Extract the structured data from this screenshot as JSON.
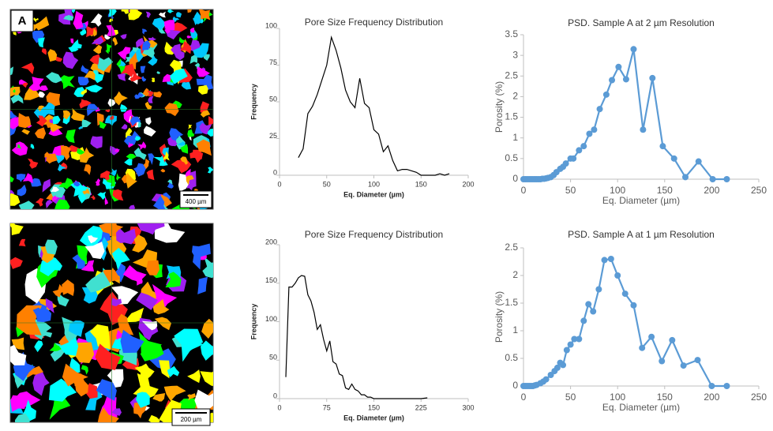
{
  "panel_label": "A",
  "images": [
    {
      "scale_bar": "400 µm"
    },
    {
      "scale_bar": "200 µm"
    }
  ],
  "chart_data": [
    {
      "type": "line",
      "title": "Pore Size Frequency Distribution",
      "x_label": "Eq. Diameter (µm)",
      "y_label": "Frequency",
      "color": "#000000",
      "markers": false,
      "x": [
        20,
        25,
        30,
        35,
        40,
        45,
        50,
        55,
        60,
        65,
        70,
        75,
        80,
        85,
        90,
        95,
        100,
        105,
        110,
        115,
        120,
        125,
        130,
        135,
        140,
        145,
        150,
        155,
        160,
        165,
        170,
        175,
        180
      ],
      "values": [
        12,
        18,
        42,
        47,
        55,
        65,
        75,
        94,
        85,
        73,
        58,
        50,
        46,
        66,
        49,
        46,
        31,
        28,
        16,
        20,
        10,
        3,
        4,
        4,
        3,
        2,
        0,
        0,
        0,
        0,
        1,
        0,
        1
      ],
      "xlim": [
        0,
        200
      ],
      "xticks": [
        0,
        50,
        100,
        150,
        200
      ],
      "ylim": [
        0,
        100
      ],
      "yticks": [
        0,
        25,
        50,
        75,
        100
      ]
    },
    {
      "type": "line",
      "title": "Pore Size Frequency Distribution",
      "x_label": "Eq. Diameter (µm)",
      "y_label": "Frequency",
      "color": "#000000",
      "markers": false,
      "x": [
        10,
        15,
        20,
        25,
        30,
        35,
        40,
        45,
        50,
        55,
        60,
        65,
        70,
        75,
        80,
        85,
        90,
        95,
        100,
        105,
        110,
        115,
        120,
        125,
        130,
        135,
        140,
        145,
        150,
        160,
        175,
        200,
        225,
        235
      ],
      "values": [
        28,
        145,
        145,
        150,
        157,
        160,
        159,
        135,
        127,
        112,
        90,
        96,
        77,
        62,
        75,
        48,
        45,
        32,
        30,
        14,
        12,
        19,
        12,
        10,
        5,
        5,
        2,
        2,
        0,
        0,
        0,
        0,
        0,
        1
      ],
      "xlim": [
        0,
        300
      ],
      "xticks": [
        0,
        75,
        150,
        225,
        300
      ],
      "ylim": [
        0,
        200
      ],
      "yticks": [
        0,
        50,
        100,
        150,
        200
      ]
    },
    {
      "type": "line",
      "title": "PSD. Sample A at 2 µm Resolution",
      "x_label": "Eq. Diameter (µm)",
      "y_label": "Porosity (%)",
      "color": "#5b9bd5",
      "markers": true,
      "x": [
        0,
        2,
        4,
        6,
        8,
        10,
        12,
        14,
        16,
        18,
        20,
        22,
        24,
        26,
        29,
        32,
        35,
        39,
        42,
        45,
        50,
        53,
        59,
        64,
        70,
        75,
        81,
        88,
        94,
        101,
        109,
        117,
        127,
        137,
        148,
        160,
        172,
        186,
        201,
        216
      ],
      "values": [
        0,
        0,
        0,
        0,
        0,
        0,
        0,
        0,
        0,
        0,
        0.01,
        0.01,
        0.02,
        0.03,
        0.05,
        0.1,
        0.17,
        0.25,
        0.3,
        0.38,
        0.5,
        0.5,
        0.7,
        0.8,
        1.1,
        1.2,
        1.7,
        2.05,
        2.4,
        2.72,
        2.42,
        3.15,
        1.2,
        2.45,
        0.8,
        0.5,
        0.05,
        0.43,
        0,
        0
      ],
      "xlim": [
        0,
        250
      ],
      "xticks": [
        0,
        50,
        100,
        150,
        200,
        250
      ],
      "ylim": [
        0,
        3.5
      ],
      "yticks": [
        0,
        0.5,
        1,
        1.5,
        2,
        2.5,
        3,
        3.5
      ]
    },
    {
      "type": "line",
      "title": "PSD. Sample A at 1 µm Resolution",
      "x_label": "Eq. Diameter (µm)",
      "y_label": "Porosity (%)",
      "color": "#5b9bd5",
      "markers": true,
      "x": [
        0,
        2,
        4,
        6,
        8,
        10,
        12,
        14,
        18,
        21,
        24,
        29,
        33,
        36,
        39,
        42,
        46,
        50,
        54,
        59,
        64,
        69,
        74,
        80,
        86,
        93,
        100,
        108,
        117,
        126,
        136,
        147,
        158,
        170,
        185,
        200,
        216
      ],
      "values": [
        0,
        0,
        0,
        0,
        0,
        0,
        0.01,
        0.02,
        0.05,
        0.08,
        0.12,
        0.2,
        0.27,
        0.33,
        0.42,
        0.38,
        0.65,
        0.75,
        0.85,
        0.85,
        1.18,
        1.48,
        1.35,
        1.75,
        2.28,
        2.3,
        2.0,
        1.67,
        1.46,
        0.69,
        0.89,
        0.45,
        0.83,
        0.37,
        0.47,
        0,
        0
      ],
      "xlim": [
        0,
        250
      ],
      "xticks": [
        0,
        50,
        100,
        150,
        200,
        250
      ],
      "ylim": [
        0,
        2.5
      ],
      "yticks": [
        0,
        0.5,
        1,
        1.5,
        2,
        2.5
      ]
    }
  ]
}
